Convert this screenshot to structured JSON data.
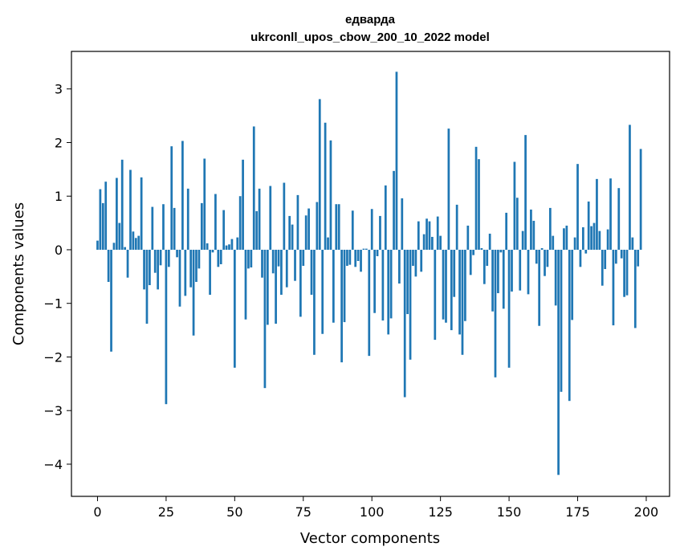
{
  "chart_data": {
    "type": "bar",
    "title": "едварда",
    "subtitle": "ukrconll_upos_cbow_200_10_2022 model",
    "xlabel": "Vector components",
    "ylabel": "Components values",
    "xlim": [
      -9.5,
      208.5
    ],
    "ylim": [
      -4.6,
      3.7
    ],
    "x_ticks": [
      0,
      25,
      50,
      75,
      100,
      125,
      150,
      175,
      200
    ],
    "y_ticks": [
      -4,
      -3,
      -2,
      -1,
      0,
      1,
      2,
      3
    ],
    "grid": false,
    "bar_color": "#1f77b4",
    "values": [
      0.17,
      1.13,
      0.87,
      1.27,
      -0.6,
      -1.9,
      0.13,
      1.34,
      0.5,
      1.68,
      0.05,
      -0.52,
      1.49,
      0.34,
      0.22,
      0.26,
      1.35,
      -0.74,
      -1.38,
      -0.66,
      0.8,
      -0.43,
      -0.74,
      -0.29,
      0.85,
      -2.88,
      -0.32,
      1.93,
      0.78,
      -0.14,
      -1.06,
      2.03,
      -0.86,
      1.14,
      -0.7,
      -1.6,
      -0.6,
      -0.35,
      0.87,
      1.7,
      0.12,
      -0.84,
      -0.05,
      1.04,
      -0.32,
      -0.27,
      0.74,
      0.08,
      0.1,
      0.2,
      -2.2,
      0.23,
      1.0,
      1.68,
      -1.3,
      -0.35,
      -0.33,
      2.3,
      0.72,
      1.14,
      -0.52,
      -2.58,
      -1.4,
      1.19,
      -0.44,
      -1.38,
      -0.31,
      -0.84,
      1.25,
      -0.7,
      0.63,
      0.47,
      -0.58,
      1.02,
      -1.25,
      -0.3,
      0.64,
      0.77,
      -0.84,
      -1.96,
      0.89,
      2.81,
      -1.57,
      2.37,
      0.23,
      2.04,
      -1.36,
      0.85,
      0.85,
      -2.1,
      -1.35,
      -0.3,
      -0.28,
      0.73,
      -0.32,
      -0.21,
      -0.41,
      0.02,
      0.02,
      -1.98,
      0.76,
      -1.18,
      -0.12,
      0.63,
      -1.32,
      1.2,
      -1.58,
      -1.28,
      1.47,
      3.32,
      -0.63,
      0.96,
      -2.75,
      -1.2,
      -2.05,
      -0.3,
      -0.5,
      0.53,
      -0.41,
      0.29,
      0.58,
      0.53,
      0.24,
      -1.68,
      0.62,
      0.26,
      -1.3,
      -1.36,
      2.26,
      -1.5,
      -0.88,
      0.84,
      -1.58,
      -1.96,
      -1.33,
      0.45,
      -0.47,
      -0.1,
      1.92,
      1.69,
      0.03,
      -0.64,
      -0.3,
      0.3,
      -1.15,
      -2.38,
      -0.81,
      -0.05,
      -1.1,
      0.69,
      -2.2,
      -0.78,
      1.64,
      0.97,
      -0.76,
      0.35,
      2.14,
      -0.83,
      0.75,
      0.54,
      -0.26,
      -1.42,
      0.03,
      -0.49,
      -0.32,
      0.78,
      0.26,
      -1.04,
      -4.2,
      -2.65,
      0.4,
      0.45,
      -2.82,
      -1.31,
      0.23,
      1.6,
      -0.32,
      0.42,
      -0.07,
      0.9,
      0.44,
      0.5,
      1.32,
      0.35,
      -0.67,
      -0.36,
      0.38,
      1.33,
      -1.41,
      -0.26,
      1.15,
      -0.16,
      -0.88,
      -0.85,
      2.33,
      0.23,
      -1.46,
      -0.31,
      1.88
    ]
  }
}
